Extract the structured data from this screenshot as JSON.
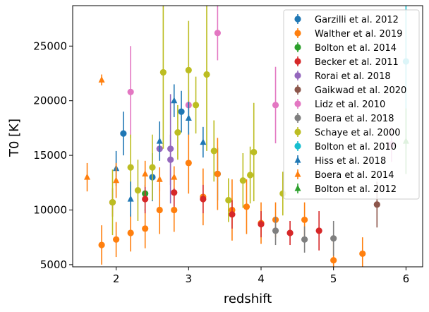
{
  "chart_data": {
    "type": "scatter",
    "xlabel": "redshift",
    "ylabel": "T0 [K]",
    "xlim": [
      1.4,
      6.23
    ],
    "ylim": [
      4800,
      28700
    ],
    "xticks": [
      2,
      3,
      4,
      5,
      6
    ],
    "yticks": [
      5000,
      10000,
      15000,
      20000,
      25000
    ],
    "legend_position": "top-right",
    "grid": false,
    "series": [
      {
        "name": "Garzilli et al. 2012",
        "color": "#1f77b4",
        "marker": "circle",
        "points": [
          [
            2.1,
            17000,
            2000
          ],
          [
            2.5,
            13000,
            2200
          ],
          [
            2.9,
            19000,
            1900
          ],
          [
            3.4,
            13300,
            2400
          ]
        ]
      },
      {
        "name": "Walther et al. 2019",
        "color": "#ff7f0e",
        "marker": "circle",
        "points": [
          [
            1.8,
            6800,
            1800
          ],
          [
            2.0,
            7300,
            1600
          ],
          [
            2.2,
            7900,
            1700
          ],
          [
            2.4,
            8300,
            1800
          ],
          [
            2.6,
            10000,
            2200
          ],
          [
            2.8,
            10000,
            2000
          ],
          [
            3.0,
            14300,
            2800
          ],
          [
            3.2,
            11200,
            2600
          ],
          [
            3.4,
            13300,
            3300
          ],
          [
            3.6,
            10000,
            2800
          ],
          [
            3.8,
            10300,
            2500
          ],
          [
            4.0,
            8800,
            1900
          ],
          [
            4.2,
            9100,
            1600
          ],
          [
            4.6,
            9100,
            1600
          ],
          [
            5.0,
            5400,
            2000
          ],
          [
            5.4,
            6000,
            1500
          ]
        ]
      },
      {
        "name": "Bolton et al. 2014",
        "color": "#2ca02c",
        "marker": "circle",
        "points": [
          [
            2.4,
            11500,
            1600
          ]
        ]
      },
      {
        "name": "Becker et al. 2011",
        "color": "#d62728",
        "marker": "circle",
        "points": [
          [
            1.95,
            10700,
            1300
          ],
          [
            2.4,
            11000,
            1300
          ],
          [
            2.8,
            11600,
            1300
          ],
          [
            3.2,
            11000,
            1300
          ],
          [
            3.6,
            9600,
            1300
          ],
          [
            4.0,
            8700,
            1200
          ],
          [
            4.4,
            7900,
            1100
          ],
          [
            4.8,
            8100,
            1800
          ]
        ]
      },
      {
        "name": "Rorai et al. 2018",
        "color": "#9467bd",
        "marker": "circle",
        "points": [
          [
            2.6,
            15600,
            1000
          ],
          [
            2.75,
            14600,
            2300
          ],
          [
            2.75,
            15600,
            5000
          ]
        ]
      },
      {
        "name": "Gaikwad et al. 2020",
        "color": "#8c564b",
        "marker": "circle",
        "points": [
          [
            5.6,
            10500,
            2100
          ]
        ]
      },
      {
        "name": "Lidz et al. 2010",
        "color": "#e377c2",
        "marker": "circle",
        "points": [
          [
            2.2,
            20800,
            4200
          ],
          [
            3.0,
            19600,
            1400
          ],
          [
            3.4,
            26200,
            2500
          ],
          [
            4.2,
            19600,
            3500
          ],
          [
            5.8,
            16000,
            1600
          ]
        ]
      },
      {
        "name": "Boera et al. 2018",
        "color": "#7f7f7f",
        "marker": "circle",
        "points": [
          [
            4.2,
            8100,
            1300
          ],
          [
            4.6,
            7300,
            1200
          ],
          [
            5.0,
            7400,
            1600
          ]
        ]
      },
      {
        "name": "Schaye et al. 2000",
        "color": "#bcbd22",
        "marker": "circle",
        "points": [
          [
            1.95,
            10700,
            3000
          ],
          [
            2.2,
            13900,
            3000
          ],
          [
            2.3,
            11800,
            2800
          ],
          [
            2.5,
            13900,
            3000
          ],
          [
            2.65,
            22600,
            7000
          ],
          [
            2.85,
            17100,
            2500
          ],
          [
            3.0,
            22800,
            4500
          ],
          [
            3.1,
            19600,
            2600
          ],
          [
            3.25,
            22400,
            7000
          ],
          [
            3.35,
            15400,
            2800
          ],
          [
            3.55,
            10900,
            2000
          ],
          [
            3.75,
            12700,
            2500
          ],
          [
            3.85,
            13200,
            2600
          ],
          [
            3.9,
            15300,
            4500
          ],
          [
            4.3,
            11500,
            2000
          ]
        ]
      },
      {
        "name": "Bolton et al. 2010",
        "color": "#17becf",
        "marker": "circle",
        "points": [
          [
            6.0,
            23600,
            8000
          ]
        ]
      },
      {
        "name": "Hiss et al. 2018",
        "color": "#1f77b4",
        "marker": "triangle",
        "points": [
          [
            2.0,
            13800,
            1600
          ],
          [
            2.2,
            11000,
            1600
          ],
          [
            2.6,
            16300,
            1800
          ],
          [
            2.8,
            20000,
            1500
          ],
          [
            3.0,
            18400,
            1500
          ],
          [
            3.2,
            16200,
            1400
          ]
        ]
      },
      {
        "name": "Boera et al. 2014",
        "color": "#ff7f0e",
        "marker": "triangle",
        "points": [
          [
            1.6,
            13000,
            1300
          ],
          [
            1.8,
            21900,
            500
          ],
          [
            2.0,
            12700,
            1600
          ],
          [
            2.4,
            13300,
            1200
          ],
          [
            2.6,
            12800,
            1100
          ],
          [
            2.8,
            13000,
            1000
          ]
        ]
      },
      {
        "name": "Bolton et al. 2012",
        "color": "#2ca02c",
        "marker": "triangle",
        "points": [
          [
            6.0,
            16300,
            3000
          ]
        ]
      }
    ]
  }
}
